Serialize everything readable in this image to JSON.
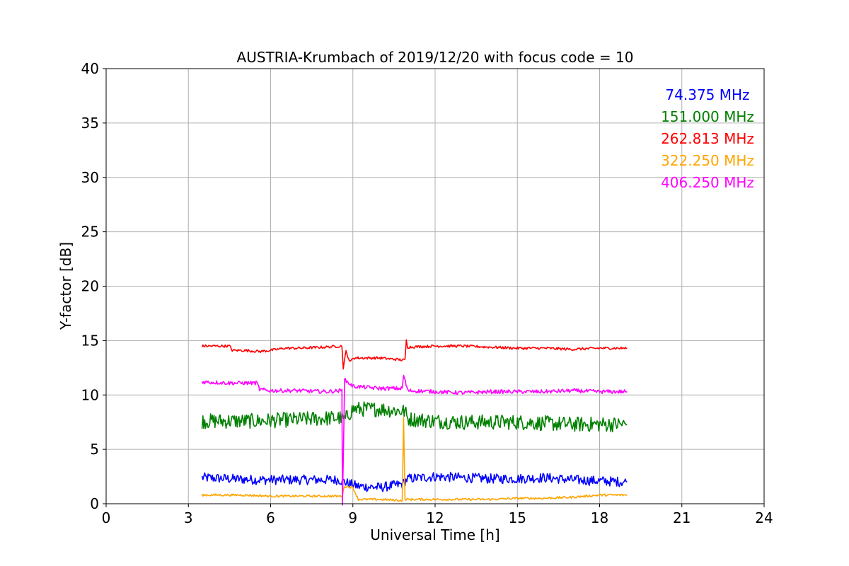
{
  "chart_data": {
    "type": "line",
    "title": "AUSTRIA-Krumbach of 2019/12/20 with focus code = 10",
    "xlabel": "Universal Time [h]",
    "ylabel": "Y-factor [dB]",
    "xlim": [
      0,
      24
    ],
    "ylim": [
      0,
      40
    ],
    "xticks": [
      "0",
      "3",
      "6",
      "9",
      "12",
      "15",
      "18",
      "21",
      "24"
    ],
    "yticks": [
      "0",
      "5",
      "10",
      "15",
      "20",
      "25",
      "30",
      "35",
      "40"
    ],
    "grid": true,
    "legend_position": "top-right",
    "series": [
      {
        "name": "74.375 MHz",
        "color": "#0000ff",
        "noise": 0.45,
        "x": [
          3.5,
          4.5,
          5.5,
          6.5,
          7.5,
          8.5,
          8.8,
          9.2,
          10.0,
          10.8,
          11.0,
          12.0,
          13.0,
          14.0,
          15.0,
          16.0,
          17.0,
          18.0,
          19.0
        ],
        "values": [
          2.4,
          2.3,
          2.2,
          2.2,
          2.2,
          2.2,
          1.9,
          1.6,
          1.5,
          1.8,
          2.3,
          2.5,
          2.4,
          2.3,
          2.3,
          2.4,
          2.2,
          2.1,
          2.0
        ]
      },
      {
        "name": "151.000 MHz",
        "color": "#008000",
        "noise": 0.7,
        "x": [
          3.5,
          4.5,
          5.5,
          6.5,
          7.5,
          8.5,
          8.7,
          9.0,
          10.0,
          10.9,
          11.0,
          12.0,
          13.0,
          14.0,
          15.0,
          16.0,
          17.0,
          18.0,
          19.0
        ],
        "values": [
          7.6,
          7.6,
          7.6,
          7.7,
          7.8,
          7.9,
          7.7,
          8.7,
          8.7,
          8.5,
          7.8,
          7.6,
          7.5,
          7.5,
          7.5,
          7.4,
          7.3,
          7.3,
          7.3
        ]
      },
      {
        "name": "262.813 MHz",
        "color": "#ff0000",
        "noise": 0.12,
        "x": [
          3.5,
          4.5,
          4.6,
          5.0,
          5.6,
          6.0,
          6.5,
          7.0,
          8.0,
          8.6,
          8.65,
          8.75,
          8.9,
          9.0,
          10.0,
          10.9,
          10.95,
          11.0,
          12.0,
          13.0,
          14.0,
          15.0,
          16.0,
          17.0,
          18.0,
          19.0
        ],
        "values": [
          14.5,
          14.5,
          14.1,
          14.1,
          14.0,
          14.1,
          14.3,
          14.3,
          14.4,
          14.5,
          12.5,
          14.0,
          13.0,
          13.4,
          13.4,
          13.2,
          15.0,
          14.4,
          14.5,
          14.5,
          14.4,
          14.3,
          14.3,
          14.2,
          14.3,
          14.3
        ]
      },
      {
        "name": "322.250 MHz",
        "color": "#ffa500",
        "noise": 0.1,
        "x": [
          3.5,
          5.0,
          6.0,
          7.0,
          8.0,
          8.6,
          8.7,
          9.0,
          9.2,
          10.0,
          10.8,
          10.85,
          10.9,
          11.0,
          12.0,
          13.0,
          14.0,
          15.0,
          16.0,
          17.0,
          18.0,
          19.0
        ],
        "values": [
          0.8,
          0.8,
          0.7,
          0.7,
          0.7,
          0.7,
          1.6,
          1.5,
          0.4,
          0.4,
          0.3,
          8.0,
          0.4,
          0.4,
          0.4,
          0.4,
          0.4,
          0.5,
          0.5,
          0.6,
          0.8,
          0.8
        ]
      },
      {
        "name": "406.250 MHz",
        "color": "#ff00ff",
        "noise": 0.18,
        "x": [
          3.5,
          4.5,
          5.5,
          5.6,
          6.0,
          7.0,
          8.0,
          8.6,
          8.62,
          8.7,
          9.0,
          10.0,
          10.8,
          10.85,
          11.0,
          12.0,
          13.0,
          14.0,
          15.0,
          16.0,
          17.0,
          18.0,
          19.0
        ],
        "values": [
          11.2,
          11.1,
          11.1,
          10.5,
          10.4,
          10.4,
          10.3,
          10.4,
          0.0,
          11.4,
          10.8,
          10.6,
          10.6,
          11.8,
          10.4,
          10.3,
          10.2,
          10.3,
          10.3,
          10.3,
          10.4,
          10.3,
          10.3
        ]
      }
    ]
  }
}
